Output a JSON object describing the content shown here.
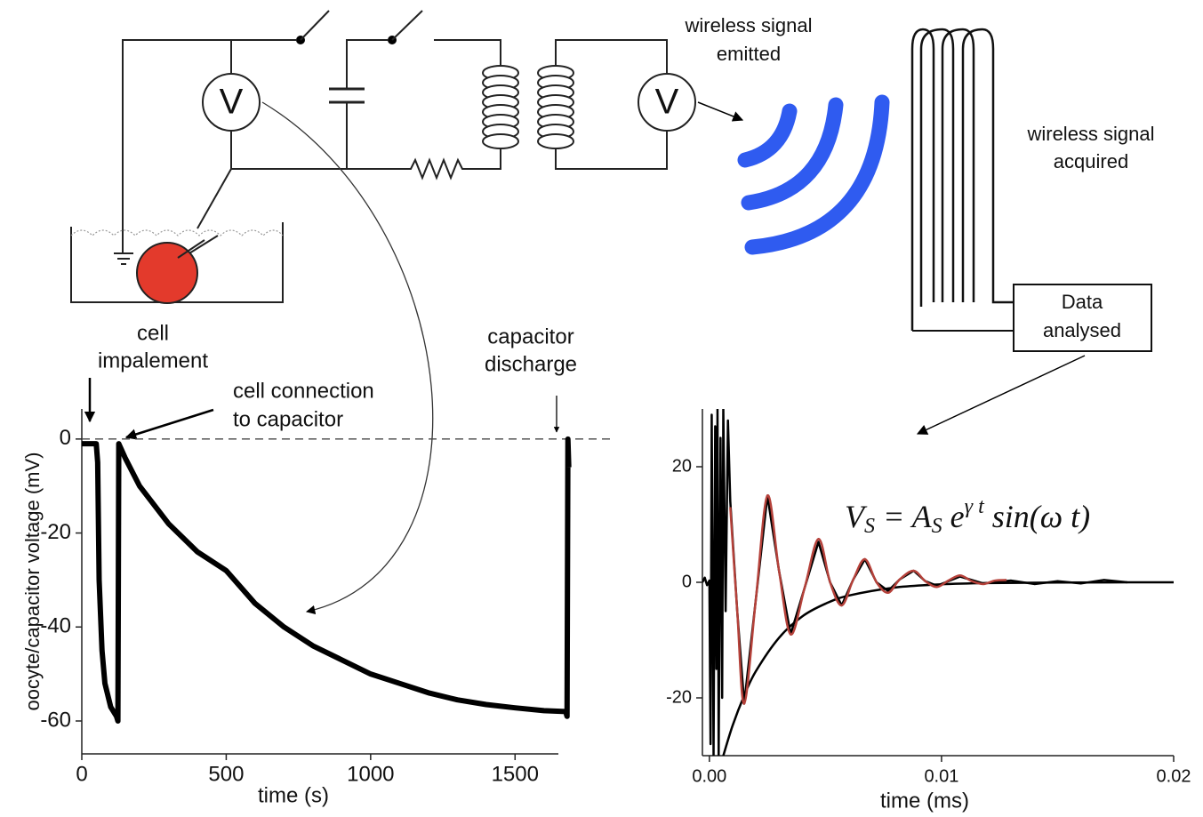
{
  "diagram": {
    "voltmeters": [
      "V",
      "V"
    ],
    "emitted": [
      "wireless signal",
      "emitted"
    ],
    "acquired": [
      "wireless signal",
      "acquired"
    ],
    "analysed": [
      "Data",
      "analysed"
    ],
    "impalement": [
      "cell",
      "impalement"
    ],
    "connection": [
      "cell connection",
      "to capacitor"
    ],
    "discharge": [
      "capacitor",
      "discharge"
    ]
  },
  "chart_data": [
    {
      "type": "line",
      "xlabel": "time (s)",
      "ylabel": "oocyte/capacitor voltage (mV)",
      "xlim": [
        0,
        1650
      ],
      "ylim": [
        -67,
        6.4
      ],
      "xticks": [
        0,
        500,
        1000,
        1500
      ],
      "yticks": [
        -60,
        -40,
        -20,
        0
      ],
      "hline": 0,
      "series": [
        {
          "color": "#000000",
          "linewidth": 6,
          "x": [
            0,
            50,
            55,
            60,
            70,
            80,
            100,
            120,
            125,
            128,
            150,
            200,
            300,
            400,
            500,
            600,
            700,
            800,
            900,
            1000,
            1100,
            1200,
            1300,
            1400,
            1500,
            1600,
            1675,
            1680,
            1683,
            1686
          ],
          "values": [
            -1,
            -1,
            -5,
            -30,
            -45,
            -52,
            -57,
            -59,
            -60,
            -1,
            -4,
            -10,
            -18,
            -24,
            -28,
            -35,
            -40,
            -44,
            -47,
            -50,
            -52,
            -54,
            -55.5,
            -56.5,
            -57.2,
            -57.8,
            -58,
            -59,
            0,
            -6
          ]
        }
      ]
    },
    {
      "type": "line",
      "xlabel": "time (ms)",
      "xlim": [
        -0.0003,
        0.02
      ],
      "ylim": [
        -30,
        30
      ],
      "xticks": [
        {
          "value": 0,
          "label": "0.00"
        },
        0.01,
        0.02
      ],
      "yticks": [
        -20,
        0,
        20
      ],
      "equation": [
        "V",
        "S",
        " = A",
        "S",
        " e",
        "γ t",
        " sin(ω t)"
      ],
      "series": [
        {
          "color": "#000000",
          "linewidth": 2.5,
          "x": [
            -0.0003,
            -0.0002,
            -0.0001,
            0,
            5e-05,
            0.0001,
            0.00018,
            0.00025,
            0.0003,
            0.00035,
            0.0004,
            0.00048,
            0.00055,
            0.0006,
            0.0007,
            0.0008,
            0.0009,
            0.0012,
            0.0015,
            0.002,
            0.0025,
            0.003,
            0.0035,
            0.0041,
            0.0047,
            0.0052,
            0.0057,
            0.0062,
            0.0067,
            0.0072,
            0.0077,
            0.0082,
            0.0088,
            0.0093,
            0.0098,
            0.0108,
            0.0118,
            0.013,
            0.014,
            0.015,
            0.016,
            0.017,
            0.018
          ],
          "values": [
            0,
            0.8,
            -0.5,
            0.3,
            -28,
            29,
            -30,
            27,
            -15,
            30,
            -30,
            25,
            -20,
            30,
            -5,
            28,
            14,
            -5,
            -21,
            -3,
            15,
            2,
            -9,
            -1,
            7,
            0,
            -4,
            0.5,
            4,
            0,
            -1.5,
            0.5,
            2,
            0.2,
            -0.6,
            1,
            -0.2,
            0.3,
            -0.3,
            0.2,
            -0.2,
            0.4,
            0
          ]
        },
        {
          "color": "#000000",
          "linewidth": 2.5,
          "smooth": true,
          "x": [
            0.0006,
            0.001,
            0.0015,
            0.002,
            0.003,
            0.004,
            0.005,
            0.006,
            0.008,
            0.01,
            0.012,
            0.015,
            0.02
          ],
          "values": [
            -30,
            -24.8,
            -19.6,
            -15.4,
            -9.6,
            -5.9,
            -3.7,
            -2.3,
            -0.9,
            -0.34,
            -0.13,
            -0.03,
            0
          ]
        },
        {
          "color": "#b5413a",
          "linewidth": 2.5,
          "smooth": true,
          "x": [
            0.0009,
            0.0012,
            0.0015,
            0.002,
            0.0025,
            0.003,
            0.0035,
            0.0041,
            0.0047,
            0.0052,
            0.0057,
            0.0062,
            0.0067,
            0.0072,
            0.0077,
            0.0082,
            0.0088,
            0.0093,
            0.0098,
            0.0103,
            0.0108,
            0.0113,
            0.0118,
            0.0123,
            0.0128
          ],
          "values": [
            13,
            -5,
            -21,
            -3,
            15,
            2,
            -9,
            -1,
            7.5,
            0,
            -4,
            0.5,
            4,
            0,
            -1.8,
            0.5,
            2,
            0.2,
            -0.8,
            0.3,
            1.2,
            0.2,
            -0.3,
            0.3,
            0.4
          ]
        }
      ]
    }
  ]
}
